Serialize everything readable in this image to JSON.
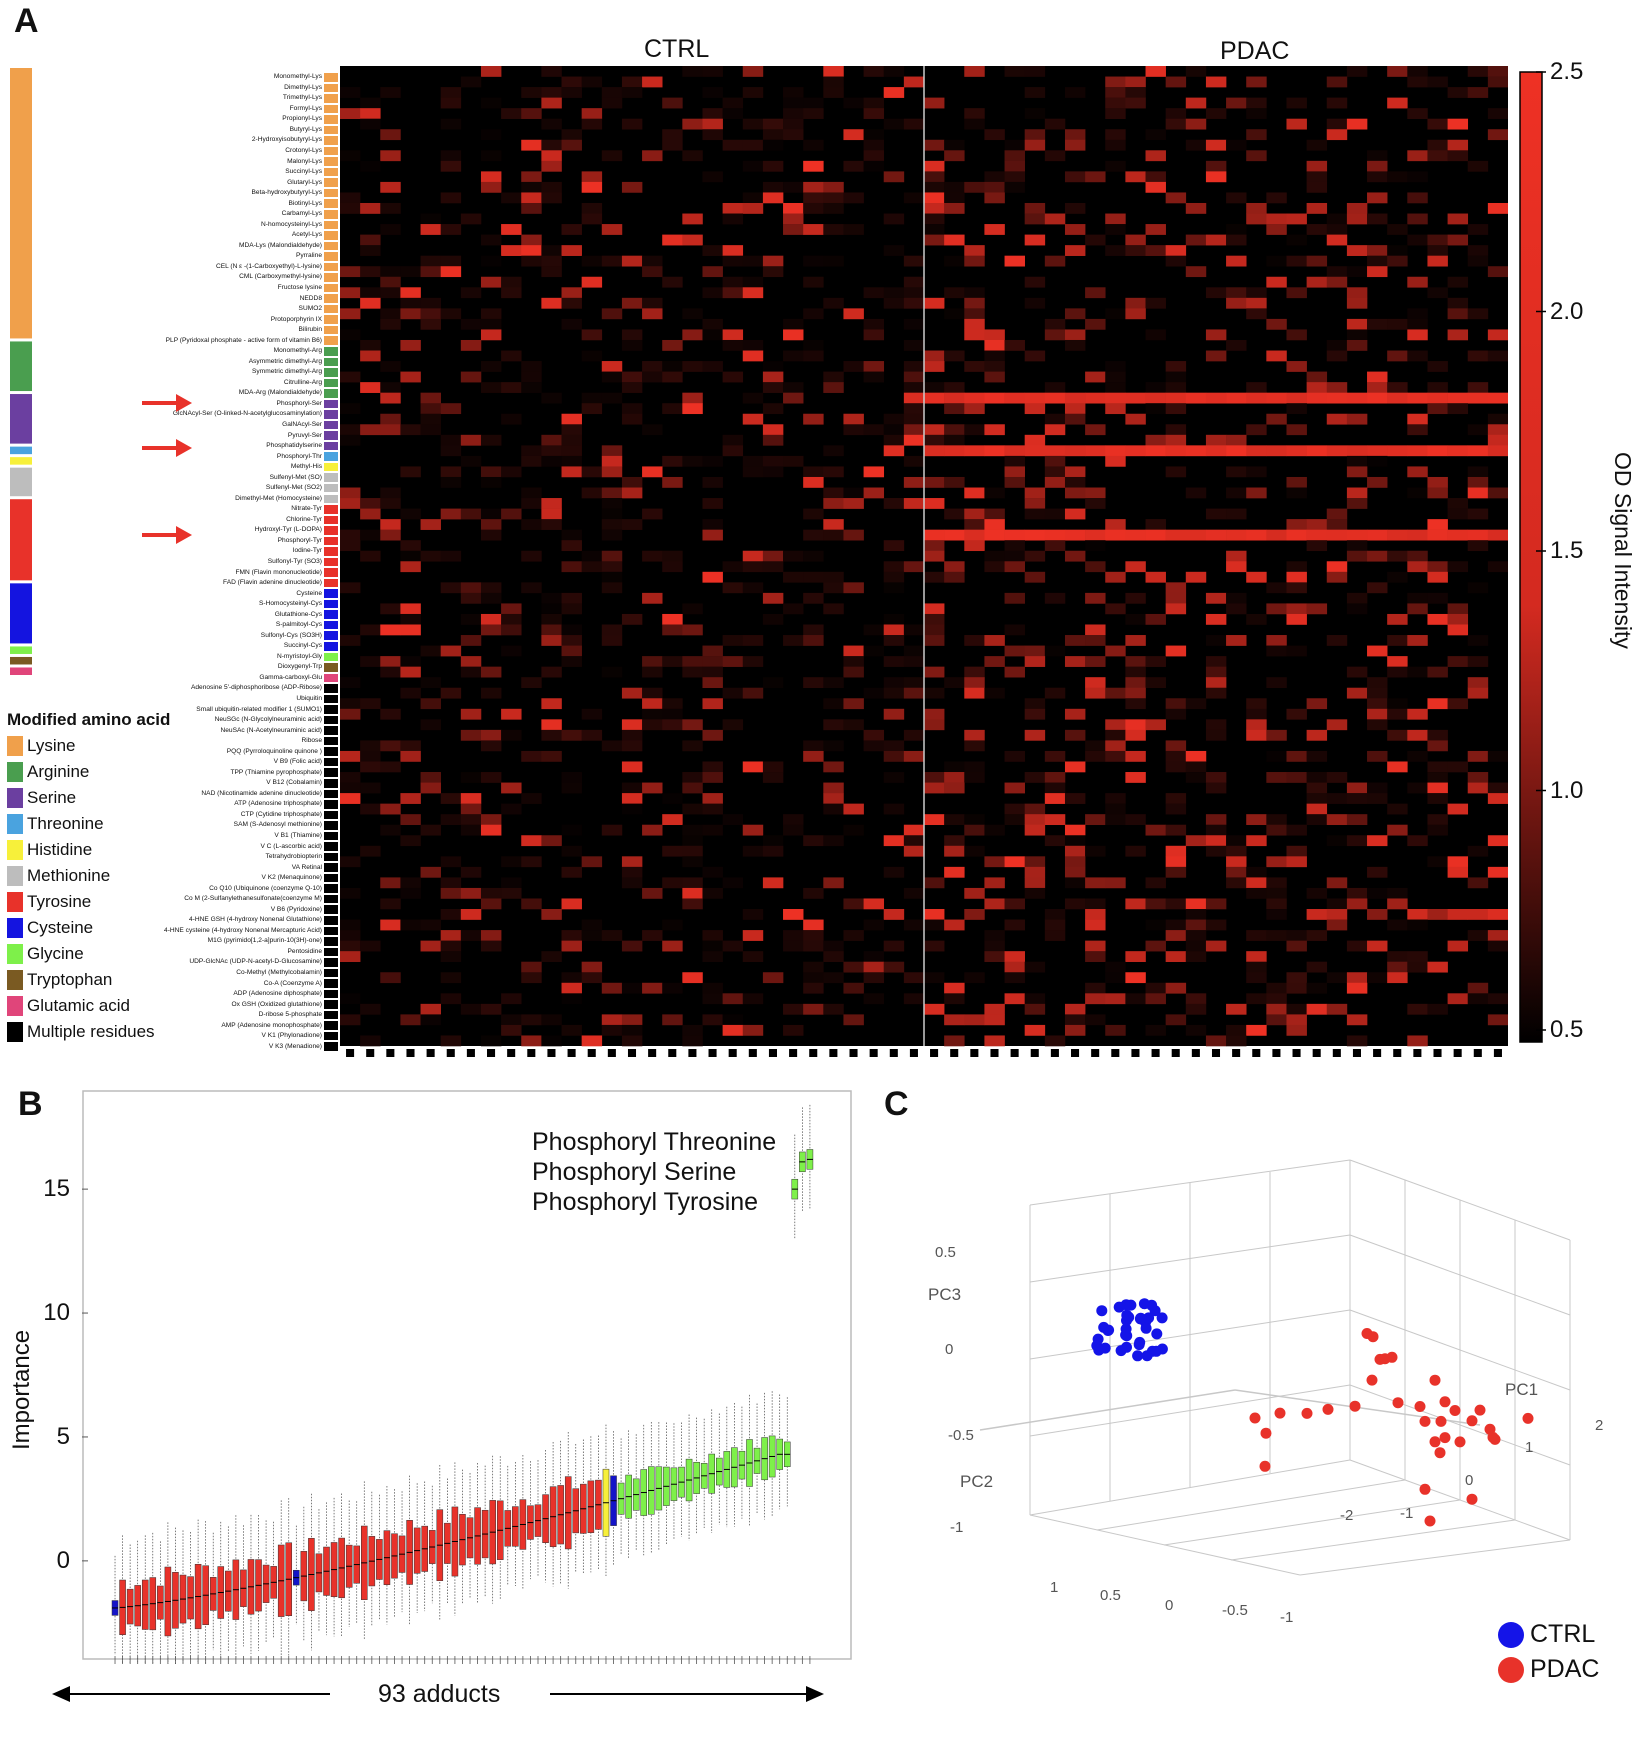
{
  "panel_labels": {
    "a": "A",
    "b": "B",
    "c": "C"
  },
  "chart_data": [
    {
      "type": "heatmap",
      "panel": "A",
      "column_groups": [
        "CTRL",
        "PDAC"
      ],
      "ctrl_columns": 29,
      "pdac_columns": 29,
      "colorbar": {
        "label": "OD Signal Intensity",
        "min": 0.5,
        "max": 2.5,
        "ticks": [
          "2.5",
          "2.0",
          "1.5",
          "1.0",
          "0.5"
        ],
        "color_low": "#000000",
        "color_high": "#ee3124"
      },
      "legend_title": "Modified amino acid",
      "legend": [
        {
          "label": "Lysine",
          "color": "#f0a04b"
        },
        {
          "label": "Arginine",
          "color": "#4a9e4f"
        },
        {
          "label": "Serine",
          "color": "#6b3fa0"
        },
        {
          "label": "Threonine",
          "color": "#4aa3df"
        },
        {
          "label": "Histidine",
          "color": "#f7f03a"
        },
        {
          "label": "Methionine",
          "color": "#bdbdbd"
        },
        {
          "label": "Tyrosine",
          "color": "#e8322a"
        },
        {
          "label": "Cysteine",
          "color": "#1414e0"
        },
        {
          "label": "Glycine",
          "color": "#7ef04a"
        },
        {
          "label": "Tryptophan",
          "color": "#7a5a22"
        },
        {
          "label": "Glutamic acid",
          "color": "#e0457a"
        },
        {
          "label": "Multiple residues",
          "color": "#000000"
        }
      ],
      "group_bar": [
        {
          "group": "Lysine",
          "rows": 26
        },
        {
          "group": "Arginine",
          "rows": 5
        },
        {
          "group": "Serine",
          "rows": 5
        },
        {
          "group": "Threonine",
          "rows": 1
        },
        {
          "group": "Histidine",
          "rows": 1
        },
        {
          "group": "Methionine",
          "rows": 3
        },
        {
          "group": "Tyrosine",
          "rows": 8
        },
        {
          "group": "Cysteine",
          "rows": 6
        },
        {
          "group": "Glycine",
          "rows": 1
        },
        {
          "group": "Tryptophan",
          "rows": 1
        },
        {
          "group": "Glutamic acid",
          "rows": 1
        },
        {
          "group": "Multiple residues",
          "rows": 35
        }
      ],
      "rows": [
        {
          "label": "Monomethyl-Lys",
          "group": "Lysine"
        },
        {
          "label": "Dimethyl-Lys",
          "group": "Lysine"
        },
        {
          "label": "Trimethyl-Lys",
          "group": "Lysine"
        },
        {
          "label": "Formyl-Lys",
          "group": "Lysine"
        },
        {
          "label": "Propionyl-Lys",
          "group": "Lysine"
        },
        {
          "label": "Butyryl-Lys",
          "group": "Lysine"
        },
        {
          "label": "2-Hydroxyisobutyryl-Lys",
          "group": "Lysine"
        },
        {
          "label": "Crotonyl-Lys",
          "group": "Lysine"
        },
        {
          "label": "Malonyl-Lys",
          "group": "Lysine"
        },
        {
          "label": "Succinyl-Lys",
          "group": "Lysine"
        },
        {
          "label": "Glutaryl-Lys",
          "group": "Lysine"
        },
        {
          "label": "Beta-hydroxybutyryl-Lys",
          "group": "Lysine"
        },
        {
          "label": "Biotinyl-Lys",
          "group": "Lysine"
        },
        {
          "label": "Carbamyl-Lys",
          "group": "Lysine"
        },
        {
          "label": "N-homocysteinyl-Lys",
          "group": "Lysine"
        },
        {
          "label": "Acetyl-Lys",
          "group": "Lysine"
        },
        {
          "label": "MDA-Lys (Malondialdehyde)",
          "group": "Lysine"
        },
        {
          "label": "Pyrraline",
          "group": "Lysine"
        },
        {
          "label": "CEL (N ε -(1-Carboxyethyl)-L-lysine)",
          "group": "Lysine"
        },
        {
          "label": "CML (Carboxymethyl-lysine)",
          "group": "Lysine"
        },
        {
          "label": "Fructose lysine",
          "group": "Lysine"
        },
        {
          "label": "NEDD8",
          "group": "Lysine"
        },
        {
          "label": "SUMO2",
          "group": "Lysine"
        },
        {
          "label": "Protoporphyrin IX",
          "group": "Lysine"
        },
        {
          "label": "Bilirubin",
          "group": "Lysine"
        },
        {
          "label": "PLP (Pyridoxal phosphate - active form of vitamin B6)",
          "group": "Lysine"
        },
        {
          "label": "Monomethyl-Arg",
          "group": "Arginine"
        },
        {
          "label": "Asymmetric dimethyl-Arg",
          "group": "Arginine"
        },
        {
          "label": "Symmetric dimethyl-Arg",
          "group": "Arginine"
        },
        {
          "label": "Citrulline-Arg",
          "group": "Arginine"
        },
        {
          "label": "MDA-Arg (Malondialdehyde)",
          "group": "Arginine"
        },
        {
          "label": "Phosphoryl-Ser",
          "group": "Serine"
        },
        {
          "label": "GlcNAcyl-Ser (O-linked-N-acetylglucosaminylation)",
          "group": "Serine"
        },
        {
          "label": "GalNAcyl-Ser",
          "group": "Serine"
        },
        {
          "label": "Pyruvyl-Ser",
          "group": "Serine"
        },
        {
          "label": "Phosphatidylserine",
          "group": "Serine"
        },
        {
          "label": "Phosphoryl-Thr",
          "group": "Threonine"
        },
        {
          "label": "Methyl-His",
          "group": "Histidine"
        },
        {
          "label": "Sulfenyl-Met (SO)",
          "group": "Methionine"
        },
        {
          "label": "Sulfenyl-Met (SO2)",
          "group": "Methionine"
        },
        {
          "label": "Dimethyl-Met (Homocysteine)",
          "group": "Methionine"
        },
        {
          "label": "Nitrate-Tyr",
          "group": "Tyrosine"
        },
        {
          "label": "Chlorine-Tyr",
          "group": "Tyrosine"
        },
        {
          "label": "Hydroxyl-Tyr (L-DOPA)",
          "group": "Tyrosine"
        },
        {
          "label": "Phosphoryl-Tyr",
          "group": "Tyrosine"
        },
        {
          "label": "Iodine-Tyr",
          "group": "Tyrosine"
        },
        {
          "label": "Sulfonyl-Tyr (SO3)",
          "group": "Tyrosine"
        },
        {
          "label": "FMN (Flavin mononucleotide)",
          "group": "Tyrosine"
        },
        {
          "label": "FAD (Flavin adenine dinucleotide)",
          "group": "Tyrosine"
        },
        {
          "label": "Cysteine",
          "group": "Cysteine"
        },
        {
          "label": "S-Homocysteinyl-Cys",
          "group": "Cysteine"
        },
        {
          "label": "Glutathione-Cys",
          "group": "Cysteine"
        },
        {
          "label": "S-palmitoyl-Cys",
          "group": "Cysteine"
        },
        {
          "label": "Sulfonyl-Cys (SO3H)",
          "group": "Cysteine"
        },
        {
          "label": "Succinyl-Cys",
          "group": "Cysteine"
        },
        {
          "label": "N-myristoyl-Gly",
          "group": "Glycine"
        },
        {
          "label": "Dioxygenyl-Trp",
          "group": "Tryptophan"
        },
        {
          "label": "Gamma-carboxyl-Glu",
          "group": "Glutamic acid"
        },
        {
          "label": "Adenosine 5'-diphosphoribose (ADP-Ribose)",
          "group": "Multiple residues"
        },
        {
          "label": "Ubiquitin",
          "group": "Multiple residues"
        },
        {
          "label": "Small ubiquitin-related modifier 1 (SUMO1)",
          "group": "Multiple residues"
        },
        {
          "label": "NeuSGc (N-Glycolylneuraminic acid)",
          "group": "Multiple residues"
        },
        {
          "label": "NeuSAc (N-Acetylneuraminic acid)",
          "group": "Multiple residues"
        },
        {
          "label": "Ribose",
          "group": "Multiple residues"
        },
        {
          "label": "PQQ (Pyrroloquinoline quinone )",
          "group": "Multiple residues"
        },
        {
          "label": "V B9 (Folic acid)",
          "group": "Multiple residues"
        },
        {
          "label": "TPP (Thiamine pyrophosphate)",
          "group": "Multiple residues"
        },
        {
          "label": "V B12 (Cobalamin)",
          "group": "Multiple residues"
        },
        {
          "label": "NAD (Nicotinamide adenine dinucleotide)",
          "group": "Multiple residues"
        },
        {
          "label": "ATP (Adenosine triphosphate)",
          "group": "Multiple residues"
        },
        {
          "label": "CTP (Cytidine triphosphate)",
          "group": "Multiple residues"
        },
        {
          "label": "SAM (S-Adenosyl methionine)",
          "group": "Multiple residues"
        },
        {
          "label": "V B1 (Thiamine)",
          "group": "Multiple residues"
        },
        {
          "label": "V C (L-ascorbic acid)",
          "group": "Multiple residues"
        },
        {
          "label": "Tetrahydrobiopterin",
          "group": "Multiple residues"
        },
        {
          "label": "VA Retinal",
          "group": "Multiple residues"
        },
        {
          "label": "V K2 (Menaquinone)",
          "group": "Multiple residues"
        },
        {
          "label": "Co Q10 (Ubiquinone (coenzyme Q-10)",
          "group": "Multiple residues"
        },
        {
          "label": "Co M (2-Sulfanylethanesulfonate(coenzyme M)",
          "group": "Multiple residues"
        },
        {
          "label": "V B6 (Pyridoxine)",
          "group": "Multiple residues"
        },
        {
          "label": "4-HNE GSH (4-hydroxy Nonenal Glutathione)",
          "group": "Multiple residues"
        },
        {
          "label": "4-HNE cysteine (4-hydroxy Nonenal Mercapturic Acid)",
          "group": "Multiple residues"
        },
        {
          "label": "M1G (pyrimido[1,2-a]purin-10(3H)-one)",
          "group": "Multiple residues"
        },
        {
          "label": "Pentosidine",
          "group": "Multiple residues"
        },
        {
          "label": "UDP-GlcNAc (UDP-N-acetyl-D-Glucosamine)",
          "group": "Multiple residues"
        },
        {
          "label": "Co-Methyl (Methylcobalamin)",
          "group": "Multiple residues"
        },
        {
          "label": "Co-A (Coenzyme A)",
          "group": "Multiple residues"
        },
        {
          "label": "ADP (Adenosine diphosphate)",
          "group": "Multiple residues"
        },
        {
          "label": "Ox GSH (Oxidized glutathione)",
          "group": "Multiple residues"
        },
        {
          "label": "D-ribose 5-phosphate",
          "group": "Multiple residues"
        },
        {
          "label": "AMP (Adenosine monophosphate)",
          "group": "Multiple residues"
        },
        {
          "label": "V K1 (Phylonadione)",
          "group": "Multiple residues"
        },
        {
          "label": "V K3 (Menadione)",
          "group": "Multiple residues"
        }
      ],
      "highlighted_rows": [
        "Phosphoryl-Ser",
        "Phosphoryl-Thr",
        "Phosphoryl-Tyr"
      ],
      "pdac_high_rows": [
        "Phosphoryl-Ser",
        "Phosphoryl-Thr",
        "Phosphoryl-Tyr"
      ],
      "arrow_color": "#e8322a"
    },
    {
      "type": "box",
      "panel": "B",
      "ylabel": "Importance",
      "xlabel": "93 adducts",
      "n_boxes": 93,
      "ylim": [
        -4,
        19
      ],
      "yticks": [
        "0",
        "5",
        "10",
        "15"
      ],
      "annotations": [
        "Phosphoryl Threonine",
        "Phosphoryl Serine",
        "Phosphoryl Tyrosine"
      ],
      "colors": {
        "rejected": "#e8322a",
        "tentative": "#f7f03a",
        "confirmed": "#7ef04a",
        "shadow": "#1414c8"
      },
      "medians_first": -1.9,
      "medians_trend": "increasing from about -1.9 to about 4.3 over the first 89 boxes; top three at about 15.0, 16.1 and 16.2",
      "top_three_medians": [
        15.0,
        16.1,
        16.2
      ]
    },
    {
      "type": "scatter",
      "panel": "C",
      "projection": "3d",
      "axes": {
        "x": "PC1",
        "y": "PC2",
        "z": "PC3"
      },
      "x_ticks": [
        "-2",
        "-1",
        "0",
        "1",
        "2"
      ],
      "y_ticks": [
        "-1",
        "-0.5",
        "0",
        "0.5",
        "1"
      ],
      "z_ticks": [
        "-1",
        "-0.5",
        "0",
        "0.5"
      ],
      "series": [
        {
          "name": "CTRL",
          "color": "#1414e8",
          "cluster": "tight"
        },
        {
          "name": "PDAC",
          "color": "#e8322a",
          "cluster": "spread"
        }
      ]
    }
  ]
}
